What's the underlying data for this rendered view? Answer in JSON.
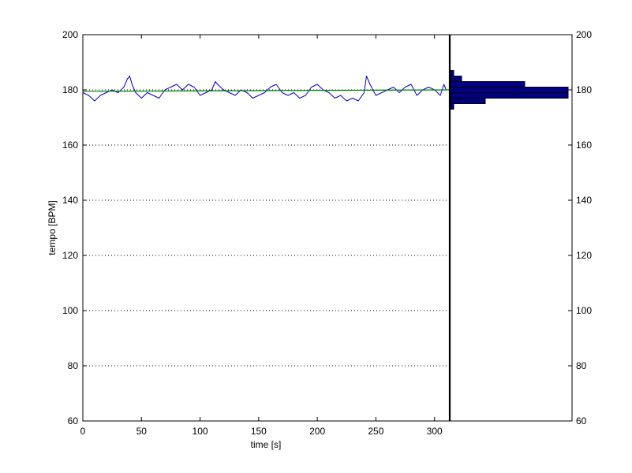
{
  "chart_data": {
    "type": "line",
    "xlabel": "time [s]",
    "ylabel": "tempo [BPM]",
    "xlim": [
      0,
      313
    ],
    "ylim": [
      60,
      200
    ],
    "x_ticks": [
      0,
      50,
      100,
      150,
      200,
      250,
      300
    ],
    "y_ticks": [
      60,
      80,
      100,
      120,
      140,
      160,
      180,
      200
    ],
    "grid": "horizontal dotted",
    "series": [
      {
        "color": "#0000cc",
        "x": [
          0,
          5,
          10,
          15,
          20,
          25,
          30,
          35,
          38,
          40,
          42,
          45,
          50,
          55,
          60,
          65,
          70,
          75,
          80,
          85,
          90,
          95,
          100,
          105,
          110,
          113,
          115,
          120,
          125,
          130,
          135,
          140,
          145,
          150,
          155,
          160,
          165,
          170,
          175,
          180,
          185,
          190,
          195,
          200,
          205,
          210,
          215,
          220,
          225,
          230,
          235,
          240,
          242,
          245,
          250,
          255,
          260,
          265,
          270,
          275,
          280,
          285,
          290,
          295,
          300,
          305,
          308,
          310
        ],
        "values": [
          179,
          178,
          176,
          178,
          179,
          180,
          179,
          181,
          184,
          185,
          182,
          179,
          177,
          179,
          178,
          177,
          180,
          181,
          182,
          180,
          182,
          181,
          178,
          179,
          180,
          183,
          182,
          180,
          179,
          178,
          180,
          179,
          177,
          178,
          179,
          181,
          182,
          179,
          178,
          179,
          177,
          178,
          181,
          182,
          180,
          179,
          177,
          178,
          176,
          177,
          176,
          179,
          185,
          182,
          178,
          179,
          180,
          181,
          179,
          181,
          182,
          178,
          180,
          181,
          180,
          178,
          182,
          180
        ]
      },
      {
        "color": "#008000",
        "x": [
          0,
          313
        ],
        "values": [
          179.5,
          180
        ]
      }
    ],
    "histogram": {
      "type": "horizontal-bar",
      "color": "#000080",
      "bins": [
        {
          "range": [
            173,
            175
          ],
          "count": 1
        },
        {
          "range": [
            175,
            177
          ],
          "count": 9
        },
        {
          "range": [
            177,
            179
          ],
          "count": 30
        },
        {
          "range": [
            179,
            181
          ],
          "count": 30
        },
        {
          "range": [
            181,
            183
          ],
          "count": 19
        },
        {
          "range": [
            183,
            185
          ],
          "count": 3
        },
        {
          "range": [
            185,
            187
          ],
          "count": 1
        }
      ],
      "count_max": 31
    }
  }
}
